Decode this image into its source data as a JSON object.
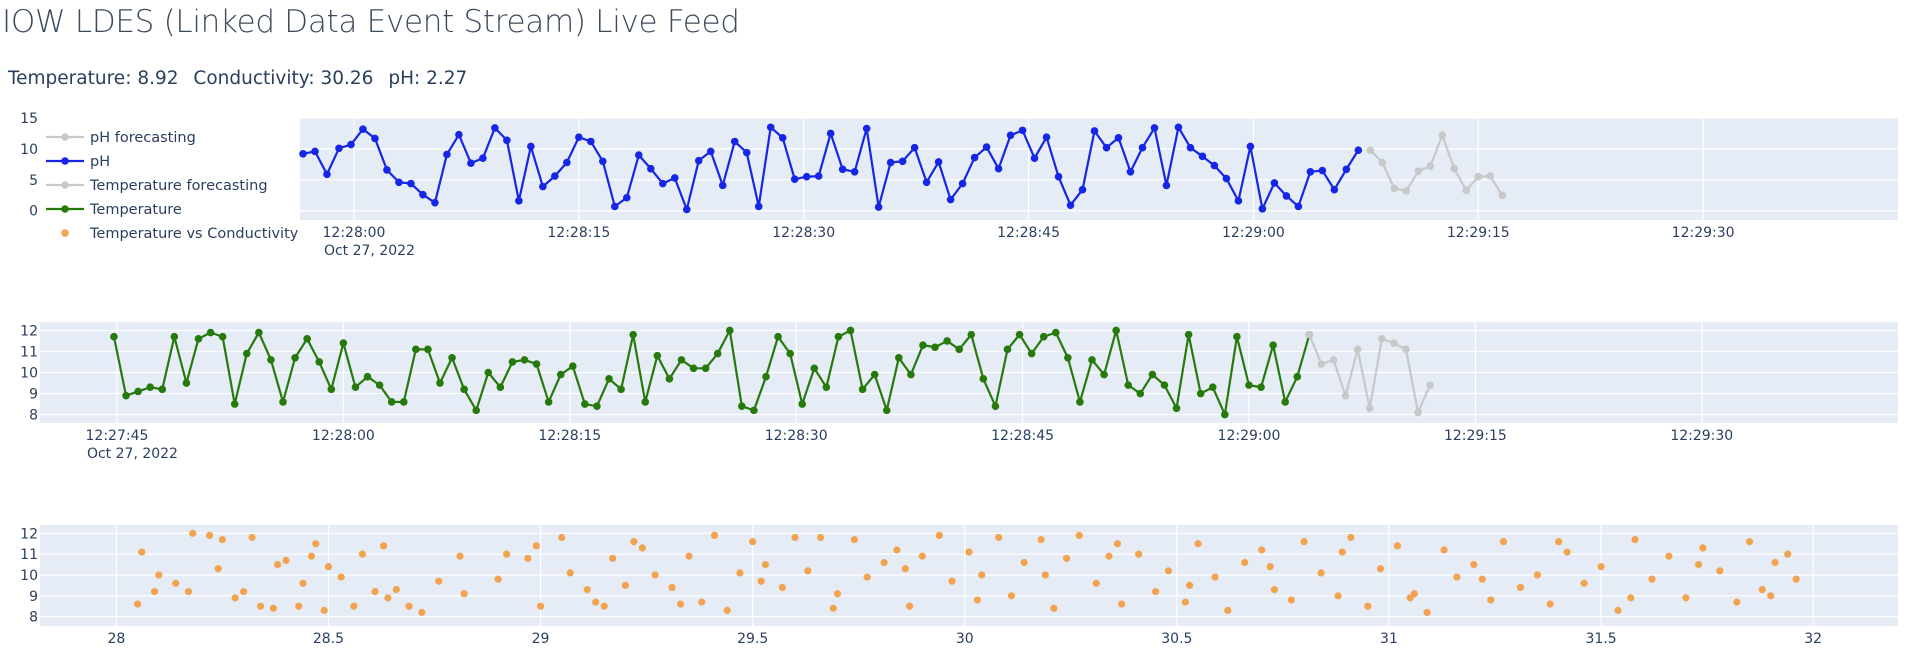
{
  "page": {
    "title": "IOW LDES (Linked Data Event Stream) Live Feed",
    "readout": {
      "temperature_label": "Temperature:",
      "temperature_value": "8.92",
      "conductivity_label": "Conductivity:",
      "conductivity_value": "30.26",
      "ph_label": "pH:",
      "ph_value": "2.27"
    }
  },
  "colors": {
    "ph": "#1626e6",
    "temperature": "#267a0c",
    "forecast": "#c8c8c8",
    "scatter": "#f2a350",
    "plot_bg": "#e5ecf6"
  },
  "legend": {
    "placement": "top-left",
    "items": [
      {
        "label": "pH forecasting",
        "marker": "line-dot",
        "color_key": "forecast"
      },
      {
        "label": "pH",
        "marker": "line-dot",
        "color_key": "ph"
      },
      {
        "label": "Temperature forecasting",
        "marker": "line-dot",
        "color_key": "forecast"
      },
      {
        "label": "Temperature",
        "marker": "line-dot",
        "color_key": "temperature"
      },
      {
        "label": "Temperature vs Conductivity",
        "marker": "dot",
        "color_key": "scatter"
      }
    ]
  },
  "chart_data": [
    {
      "type": "line",
      "name": "ph-panel",
      "x_unit": "seconds after 12:27:45",
      "xlim": [
        11.4,
        118
      ],
      "ylim": [
        -1.5,
        15
      ],
      "yticks": [
        0,
        5,
        10,
        15
      ],
      "xtick_labels": [
        "12:28:00",
        "12:28:15",
        "12:28:30",
        "12:28:45",
        "12:29:00",
        "12:29:15",
        "12:29:30"
      ],
      "date_label": "Oct 27, 2022",
      "x_start": 11.6,
      "step": 0.8,
      "series": [
        {
          "name": "pH",
          "color_key": "ph",
          "values": [
            9.2,
            9.6,
            5.9,
            10.1,
            10.7,
            13.2,
            11.7,
            6.6,
            4.6,
            4.4,
            2.6,
            1.3,
            9.1,
            12.3,
            7.7,
            8.5,
            13.4,
            11.4,
            1.6,
            10.4,
            3.9,
            5.6,
            7.8,
            11.9,
            11.2,
            8.0,
            0.7,
            2.1,
            9.0,
            6.8,
            4.4,
            5.3,
            0.2,
            8.1,
            9.6,
            4.1,
            11.2,
            9.4,
            0.7,
            13.5,
            11.8,
            5.1,
            5.5,
            5.6,
            12.5,
            6.7,
            6.3,
            13.3,
            0.6,
            7.8,
            8.0,
            10.2,
            4.6,
            7.9,
            1.8,
            4.4,
            8.6,
            10.3,
            6.8,
            12.2,
            13.0,
            8.5,
            11.9,
            5.5,
            0.9,
            3.4,
            12.9,
            10.2,
            11.8,
            6.3,
            10.2,
            13.4,
            4.1,
            13.5,
            10.2,
            8.8,
            7.3,
            5.2,
            1.6,
            10.4,
            0.3,
            4.5,
            2.4,
            0.7,
            6.3,
            6.5,
            3.4,
            6.7,
            9.8
          ]
        },
        {
          "name": "pH forecasting",
          "color_key": "forecast",
          "x_start": 82.8,
          "values": [
            9.8,
            7.8,
            3.6,
            3.2,
            6.4,
            7.2,
            12.2,
            6.8,
            3.3,
            5.5,
            5.6,
            2.5
          ]
        }
      ]
    },
    {
      "type": "line",
      "name": "temperature-panel",
      "x_unit": "seconds after 12:27:45",
      "xlim": [
        -5.1,
        118
      ],
      "ylim": [
        7.6,
        12.4
      ],
      "yticks": [
        8,
        9,
        10,
        11,
        12
      ],
      "xtick_labels": [
        "12:27:45",
        "12:28:00",
        "12:28:15",
        "12:28:30",
        "12:28:45",
        "12:29:00",
        "12:29:15",
        "12:29:30"
      ],
      "date_label": "Oct 27, 2022",
      "x_start": -0.2,
      "step": 0.8,
      "series": [
        {
          "name": "Temperature",
          "color_key": "temperature",
          "values": [
            11.7,
            8.9,
            9.1,
            9.3,
            9.2,
            11.7,
            9.5,
            11.6,
            11.9,
            11.7,
            8.5,
            10.9,
            11.9,
            10.6,
            8.6,
            10.7,
            11.6,
            10.5,
            9.2,
            11.4,
            9.3,
            9.8,
            9.4,
            8.6,
            8.6,
            11.1,
            11.1,
            9.5,
            10.7,
            9.2,
            8.2,
            10.0,
            9.3,
            10.5,
            10.6,
            10.4,
            8.6,
            9.9,
            10.3,
            8.5,
            8.4,
            9.7,
            9.2,
            11.8,
            8.6,
            10.8,
            9.7,
            10.6,
            10.2,
            10.2,
            10.9,
            12.0,
            8.4,
            8.2,
            9.8,
            11.7,
            10.9,
            8.5,
            10.2,
            9.3,
            11.7,
            12.0,
            9.2,
            9.9,
            8.2,
            10.7,
            9.9,
            11.3,
            11.2,
            11.5,
            11.1,
            11.8,
            9.7,
            8.4,
            11.1,
            11.8,
            10.9,
            11.7,
            11.9,
            10.7,
            8.6,
            10.6,
            9.9,
            12.0,
            9.4,
            9.0,
            9.9,
            9.4,
            8.3,
            11.8,
            9.0,
            9.3,
            8.0,
            11.7,
            9.4,
            9.3,
            11.3,
            8.6,
            9.8,
            11.8
          ]
        },
        {
          "name": "Temperature forecasting",
          "color_key": "forecast",
          "x_start": 79.0,
          "values": [
            11.8,
            10.4,
            10.6,
            8.9,
            11.1,
            8.3,
            11.6,
            11.4,
            11.1,
            8.1,
            9.4
          ]
        }
      ]
    },
    {
      "type": "scatter",
      "name": "temperature-vs-conductivity-panel",
      "series_name": "Temperature vs Conductivity",
      "color_key": "scatter",
      "xlim": [
        27.82,
        32.2
      ],
      "ylim": [
        7.55,
        12.4
      ],
      "xticks": [
        28,
        28.5,
        29,
        29.5,
        30,
        30.5,
        31,
        31.5,
        32
      ],
      "xtick_labels": [
        "28",
        "28.5",
        "29",
        "29.5",
        "30",
        "30.5",
        "31",
        "31.5",
        "32"
      ],
      "yticks": [
        8,
        9,
        10,
        11,
        12
      ],
      "points": [
        [
          28.05,
          8.6
        ],
        [
          28.06,
          11.1
        ],
        [
          28.09,
          9.2
        ],
        [
          28.14,
          9.6
        ],
        [
          28.17,
          9.2
        ],
        [
          28.18,
          12.0
        ],
        [
          28.22,
          11.9
        ],
        [
          28.24,
          10.3
        ],
        [
          28.25,
          11.7
        ],
        [
          28.3,
          9.2
        ],
        [
          28.32,
          11.8
        ],
        [
          28.34,
          8.5
        ],
        [
          28.37,
          8.4
        ],
        [
          28.38,
          10.5
        ],
        [
          28.4,
          10.7
        ],
        [
          28.43,
          8.5
        ],
        [
          28.44,
          9.6
        ],
        [
          28.47,
          11.5
        ],
        [
          28.49,
          8.3
        ],
        [
          28.5,
          10.4
        ],
        [
          28.53,
          9.9
        ],
        [
          28.56,
          8.5
        ],
        [
          28.58,
          11.0
        ],
        [
          28.61,
          9.2
        ],
        [
          28.64,
          8.9
        ],
        [
          28.66,
          9.3
        ],
        [
          28.69,
          8.5
        ],
        [
          28.72,
          8.2
        ],
        [
          28.76,
          9.7
        ],
        [
          28.81,
          10.9
        ],
        [
          28.9,
          9.8
        ],
        [
          28.92,
          11.0
        ],
        [
          28.97,
          10.8
        ],
        [
          29.0,
          8.5
        ],
        [
          29.05,
          11.8
        ],
        [
          29.07,
          10.1
        ],
        [
          29.11,
          9.3
        ],
        [
          29.13,
          8.7
        ],
        [
          29.15,
          8.5
        ],
        [
          29.2,
          9.5
        ],
        [
          29.22,
          11.6
        ],
        [
          29.24,
          11.3
        ],
        [
          29.27,
          10.0
        ],
        [
          29.31,
          9.4
        ],
        [
          29.35,
          10.9
        ],
        [
          29.38,
          8.7
        ],
        [
          29.41,
          11.9
        ],
        [
          29.44,
          8.3
        ],
        [
          29.47,
          10.1
        ],
        [
          29.5,
          11.6
        ],
        [
          29.53,
          10.5
        ],
        [
          29.57,
          9.4
        ],
        [
          29.6,
          11.8
        ],
        [
          29.63,
          10.2
        ],
        [
          29.66,
          11.8
        ],
        [
          29.7,
          9.1
        ],
        [
          29.74,
          11.7
        ],
        [
          29.77,
          9.9
        ],
        [
          29.81,
          10.6
        ],
        [
          29.84,
          11.2
        ],
        [
          29.87,
          8.5
        ],
        [
          29.9,
          10.9
        ],
        [
          29.94,
          11.9
        ],
        [
          29.97,
          9.7
        ],
        [
          30.01,
          11.1
        ],
        [
          30.04,
          10.0
        ],
        [
          30.08,
          11.8
        ],
        [
          30.11,
          9.0
        ],
        [
          30.14,
          10.6
        ],
        [
          30.18,
          11.7
        ],
        [
          30.21,
          8.4
        ],
        [
          30.24,
          10.8
        ],
        [
          30.27,
          11.9
        ],
        [
          30.31,
          9.6
        ],
        [
          30.34,
          10.9
        ],
        [
          30.37,
          8.6
        ],
        [
          30.41,
          11.0
        ],
        [
          30.45,
          9.2
        ],
        [
          30.48,
          10.2
        ],
        [
          30.52,
          8.7
        ],
        [
          30.55,
          11.5
        ],
        [
          30.59,
          9.9
        ],
        [
          30.62,
          8.3
        ],
        [
          30.66,
          10.6
        ],
        [
          30.7,
          11.2
        ],
        [
          30.73,
          9.3
        ],
        [
          30.77,
          8.8
        ],
        [
          30.8,
          11.6
        ],
        [
          30.84,
          10.1
        ],
        [
          30.88,
          9.0
        ],
        [
          30.91,
          11.8
        ],
        [
          30.95,
          8.5
        ],
        [
          30.98,
          10.3
        ],
        [
          31.02,
          11.4
        ],
        [
          31.06,
          9.1
        ],
        [
          31.09,
          8.2
        ],
        [
          31.13,
          11.2
        ],
        [
          31.16,
          9.9
        ],
        [
          31.2,
          10.5
        ],
        [
          31.24,
          8.8
        ],
        [
          31.27,
          11.6
        ],
        [
          31.31,
          9.4
        ],
        [
          31.35,
          10.0
        ],
        [
          31.38,
          8.6
        ],
        [
          31.42,
          11.1
        ],
        [
          31.46,
          9.6
        ],
        [
          31.5,
          10.4
        ],
        [
          31.54,
          8.3
        ],
        [
          31.58,
          11.7
        ],
        [
          31.62,
          9.8
        ],
        [
          31.66,
          10.9
        ],
        [
          31.7,
          8.9
        ],
        [
          31.74,
          11.3
        ],
        [
          31.78,
          10.2
        ],
        [
          31.82,
          8.7
        ],
        [
          31.85,
          11.6
        ],
        [
          31.88,
          9.3
        ],
        [
          31.91,
          10.6
        ],
        [
          31.94,
          11.0
        ],
        [
          31.96,
          9.8
        ],
        [
          28.1,
          10.0
        ],
        [
          28.28,
          8.9
        ],
        [
          28.46,
          10.9
        ],
        [
          28.63,
          11.4
        ],
        [
          28.82,
          9.1
        ],
        [
          28.99,
          11.4
        ],
        [
          29.17,
          10.8
        ],
        [
          29.33,
          8.6
        ],
        [
          29.52,
          9.7
        ],
        [
          29.69,
          8.4
        ],
        [
          29.86,
          10.3
        ],
        [
          30.03,
          8.8
        ],
        [
          30.19,
          10.0
        ],
        [
          30.36,
          11.5
        ],
        [
          30.53,
          9.5
        ],
        [
          30.72,
          10.4
        ],
        [
          30.89,
          11.1
        ],
        [
          31.05,
          8.9
        ],
        [
          31.22,
          9.8
        ],
        [
          31.4,
          11.6
        ],
        [
          31.57,
          8.9
        ],
        [
          31.73,
          10.5
        ],
        [
          31.9,
          9.0
        ]
      ]
    }
  ]
}
